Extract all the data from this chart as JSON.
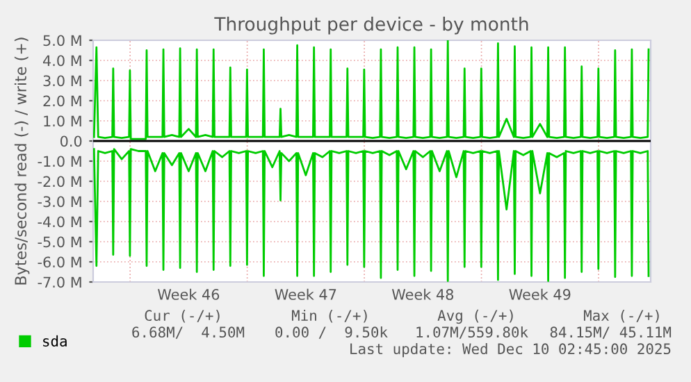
{
  "chart_data": {
    "type": "line",
    "title": "Throughput per device - by month",
    "ylabel": "Bytes/second read (-) / write (+)",
    "x": [
      "2025-11-06T20:15",
      "2025-11-06T23:45",
      "2025-11-07T02:15",
      "2025-11-07T12:00",
      "2025-11-07T22:30",
      "2025-11-07T23:45",
      "2025-11-08T01:00",
      "2025-11-08T12:00",
      "2025-11-08T22:30",
      "2025-11-08T23:45",
      "2025-11-09T01:00",
      "2025-11-09T12:00",
      "2025-11-09T22:30",
      "2025-11-09T23:45",
      "2025-11-10T01:00",
      "2025-11-10T12:00",
      "2025-11-10T22:30",
      "2025-11-10T23:45",
      "2025-11-11T01:00",
      "2025-11-11T12:00",
      "2025-11-11T22:30",
      "2025-11-11T23:45",
      "2025-11-12T01:00",
      "2025-11-12T12:00",
      "2025-11-12T22:30",
      "2025-11-12T23:45",
      "2025-11-13T01:00",
      "2025-11-13T12:00",
      "2025-11-13T22:30",
      "2025-11-13T23:45",
      "2025-11-14T01:00",
      "2025-11-14T12:00",
      "2025-11-14T22:30",
      "2025-11-14T23:45",
      "2025-11-15T01:00",
      "2025-11-15T12:00",
      "2025-11-15T22:30",
      "2025-11-15T23:45",
      "2025-11-16T01:00",
      "2025-11-16T12:00",
      "2025-11-16T22:30",
      "2025-11-16T23:45",
      "2025-11-17T01:00",
      "2025-11-17T12:00",
      "2025-11-17T22:30",
      "2025-11-17T23:45",
      "2025-11-18T01:00",
      "2025-11-18T12:00",
      "2025-11-18T22:30",
      "2025-11-18T23:45",
      "2025-11-19T01:00",
      "2025-11-19T12:00",
      "2025-11-19T22:30",
      "2025-11-19T23:45",
      "2025-11-20T01:00",
      "2025-11-20T12:00",
      "2025-11-20T22:30",
      "2025-11-20T23:45",
      "2025-11-21T01:00",
      "2025-11-21T12:00",
      "2025-11-21T22:30",
      "2025-11-21T23:45",
      "2025-11-22T01:00",
      "2025-11-22T12:00",
      "2025-11-22T22:30",
      "2025-11-22T23:45",
      "2025-11-23T01:00",
      "2025-11-23T12:00",
      "2025-11-23T22:30",
      "2025-11-23T23:45",
      "2025-11-24T01:00",
      "2025-11-24T12:00",
      "2025-11-24T22:30",
      "2025-11-24T23:45",
      "2025-11-25T01:00",
      "2025-11-25T12:00",
      "2025-11-25T22:30",
      "2025-11-25T23:45",
      "2025-11-26T01:00",
      "2025-11-26T12:00",
      "2025-11-26T22:30",
      "2025-11-26T23:45",
      "2025-11-27T01:00",
      "2025-11-27T12:00",
      "2025-11-27T22:30",
      "2025-11-27T23:45",
      "2025-11-28T01:00",
      "2025-11-28T12:00",
      "2025-11-28T22:30",
      "2025-11-28T23:45",
      "2025-11-29T01:00",
      "2025-11-29T12:00",
      "2025-11-29T22:30",
      "2025-11-29T23:45",
      "2025-11-30T01:00",
      "2025-11-30T12:00",
      "2025-11-30T22:30",
      "2025-11-30T23:45",
      "2025-12-01T01:00",
      "2025-12-01T12:00",
      "2025-12-01T22:30",
      "2025-12-01T23:45",
      "2025-12-02T01:00",
      "2025-12-02T12:00",
      "2025-12-02T22:30",
      "2025-12-02T23:45",
      "2025-12-03T01:00",
      "2025-12-03T12:00",
      "2025-12-03T22:30",
      "2025-12-03T23:45",
      "2025-12-04T01:00",
      "2025-12-04T12:00",
      "2025-12-04T22:30",
      "2025-12-04T23:45",
      "2025-12-05T01:00",
      "2025-12-05T12:00",
      "2025-12-05T22:30",
      "2025-12-05T23:45",
      "2025-12-06T01:00",
      "2025-12-06T12:00",
      "2025-12-06T22:30",
      "2025-12-06T23:45",
      "2025-12-07T01:00",
      "2025-12-07T12:00",
      "2025-12-07T22:30",
      "2025-12-07T23:45",
      "2025-12-08T01:00",
      "2025-12-08T12:00",
      "2025-12-08T22:30",
      "2025-12-08T23:45",
      "2025-12-09T01:00",
      "2025-12-09T12:00",
      "2025-12-09T22:30",
      "2025-12-09T23:45"
    ],
    "series": [
      {
        "name": "sda",
        "color": "#00cc00",
        "values": [
          0.2,
          4.65,
          0.2,
          0.15,
          0.2,
          3.6,
          0.2,
          0.15,
          0.2,
          3.5,
          0.1,
          0.1,
          0.1,
          4.5,
          0.2,
          0.2,
          0.2,
          4.55,
          0.2,
          0.3,
          0.2,
          4.6,
          0.2,
          0.6,
          0.2,
          4.55,
          0.2,
          0.3,
          0.2,
          4.55,
          0.2,
          0.2,
          0.2,
          3.65,
          0.2,
          0.2,
          0.2,
          3.55,
          0.2,
          0.2,
          0.2,
          4.55,
          0.2,
          0.2,
          0.2,
          1.6,
          0.2,
          0.3,
          0.2,
          4.75,
          0.2,
          0.2,
          0.2,
          4.65,
          0.2,
          0.2,
          0.2,
          4.55,
          0.2,
          0.2,
          0.2,
          3.6,
          0.2,
          0.2,
          0.2,
          3.55,
          0.2,
          0.15,
          0.2,
          4.55,
          0.2,
          0.15,
          0.2,
          4.65,
          0.2,
          0.15,
          0.2,
          4.65,
          0.2,
          0.15,
          0.2,
          4.55,
          0.2,
          0.15,
          0.2,
          5.0,
          0.2,
          0.15,
          0.2,
          3.6,
          0.2,
          0.15,
          0.2,
          3.6,
          0.2,
          0.15,
          0.2,
          4.85,
          0.2,
          1.1,
          0.2,
          4.7,
          0.2,
          0.15,
          0.2,
          4.65,
          0.2,
          0.85,
          0.2,
          4.65,
          0.2,
          0.15,
          0.2,
          4.65,
          0.2,
          0.15,
          0.2,
          3.7,
          0.2,
          0.15,
          0.2,
          3.6,
          0.2,
          0.15,
          0.2,
          4.5,
          0.2,
          0.15,
          0.2,
          4.55,
          0.2,
          0.15,
          0.2,
          4.55
        ]
      },
      {
        "color": "#00cc00",
        "values": [
          -0.4,
          -6.2,
          -0.5,
          -0.6,
          -0.5,
          -5.65,
          -0.4,
          -0.9,
          -0.5,
          -5.7,
          -0.4,
          -0.5,
          -0.5,
          -6.2,
          -0.5,
          -1.5,
          -0.6,
          -6.4,
          -0.6,
          -1.2,
          -0.6,
          -6.3,
          -0.6,
          -1.5,
          -0.6,
          -6.5,
          -0.6,
          -1.5,
          -0.5,
          -6.4,
          -0.5,
          -0.8,
          -0.5,
          -6.2,
          -0.5,
          -0.6,
          -0.5,
          -6.15,
          -0.5,
          -0.6,
          -0.5,
          -6.7,
          -0.5,
          -1.3,
          -0.5,
          -2.95,
          -0.6,
          -1.0,
          -0.6,
          -6.7,
          -0.6,
          -1.7,
          -0.6,
          -6.7,
          -0.6,
          -0.8,
          -0.5,
          -6.5,
          -0.5,
          -0.6,
          -0.5,
          -6.15,
          -0.5,
          -0.6,
          -0.5,
          -6.25,
          -0.5,
          -0.6,
          -0.5,
          -6.8,
          -0.5,
          -0.7,
          -0.5,
          -6.4,
          -0.5,
          -1.4,
          -0.5,
          -6.7,
          -0.5,
          -0.8,
          -0.5,
          -6.45,
          -0.5,
          -1.5,
          -0.5,
          -6.95,
          -0.5,
          -1.8,
          -0.5,
          -6.25,
          -0.5,
          -0.6,
          -0.5,
          -6.25,
          -0.5,
          -0.6,
          -0.5,
          -6.9,
          -0.5,
          -3.4,
          -0.5,
          -6.6,
          -0.5,
          -0.7,
          -0.5,
          -6.7,
          -0.5,
          -2.6,
          -0.6,
          -6.95,
          -0.6,
          -0.8,
          -0.6,
          -6.8,
          -0.5,
          -0.6,
          -0.5,
          -6.5,
          -0.5,
          -0.6,
          -0.5,
          -6.35,
          -0.5,
          -0.6,
          -0.5,
          -6.75,
          -0.5,
          -0.6,
          -0.5,
          -6.7,
          -0.5,
          -0.6,
          -0.5,
          -6.7
        ]
      }
    ],
    "xlim": [
      "2025-11-06T19:00",
      "2025-12-10T02:45"
    ],
    "xticks": [
      {
        "value": "2025-11-09",
        "label": null
      },
      {
        "value": "2025-11-12T12:00",
        "label": "Week 46"
      },
      {
        "value": "2025-11-16",
        "label": null
      },
      {
        "value": "2025-11-19T12:00",
        "label": "Week 47"
      },
      {
        "value": "2025-11-23",
        "label": null
      },
      {
        "value": "2025-11-26T12:00",
        "label": "Week 48"
      },
      {
        "value": "2025-11-30",
        "label": null
      },
      {
        "value": "2025-12-03T12:00",
        "label": "Week 49"
      },
      {
        "value": "2025-12-07",
        "label": null
      }
    ],
    "ylim": [
      -7,
      5
    ],
    "yticks": [
      {
        "value": 5,
        "label": "5.0 M"
      },
      {
        "value": 4,
        "label": "4.0 M"
      },
      {
        "value": 3,
        "label": "3.0 M"
      },
      {
        "value": 2,
        "label": "2.0 M"
      },
      {
        "value": 1,
        "label": "1.0 M"
      },
      {
        "value": 0,
        "label": "0.0"
      },
      {
        "value": -1,
        "label": "-1.0 M"
      },
      {
        "value": -2,
        "label": "-2.0 M"
      },
      {
        "value": -3,
        "label": "-3.0 M"
      },
      {
        "value": -4,
        "label": "-4.0 M"
      },
      {
        "value": -5,
        "label": "-5.0 M"
      },
      {
        "value": -6,
        "label": "-6.0 M"
      },
      {
        "value": -7,
        "label": "-7.0 M"
      }
    ],
    "ref_lines": [
      {
        "axis": "y",
        "value": 0,
        "color": "#000000"
      }
    ],
    "grid": true,
    "legend": "bottom left",
    "marker": "none",
    "line_style": "solid",
    "annotations": [
      "Cur (-/+)",
      "Min (-/+)",
      "Avg (-/+)",
      "Max (-/+)",
      "6.68M/  4.50M",
      "0.00 /  9.50k",
      "1.07M/559.80k",
      "84.15M/ 45.11M",
      "Last update: Wed Dec 10 02:45:00 2025"
    ]
  }
}
